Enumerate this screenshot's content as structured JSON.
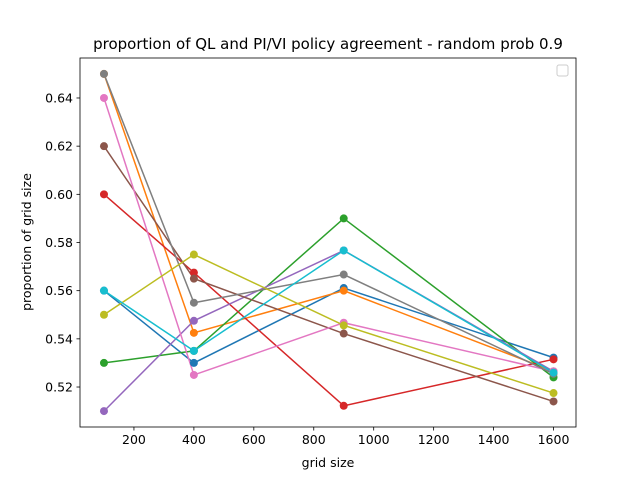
{
  "chart_data": {
    "type": "line",
    "title": "proportion of QL and PI/VI policy agreement - random prob 0.9",
    "xlabel": "grid size",
    "ylabel": "proportion of grid size",
    "xlim": [
      20,
      1675
    ],
    "ylim": [
      0.5034,
      0.6566
    ],
    "xticks": [
      200,
      400,
      600,
      800,
      1000,
      1200,
      1400,
      1600
    ],
    "yticks": [
      0.52,
      0.54,
      0.56,
      0.58,
      0.6,
      0.62,
      0.64
    ],
    "x": [
      100,
      400,
      900,
      1600
    ],
    "grid": false,
    "legend": {
      "placement": "upper right",
      "entries": []
    },
    "series": [
      {
        "color": "#1f77b4",
        "values": [
          0.56,
          0.53,
          0.5611,
          0.5322
        ]
      },
      {
        "color": "#ff7f0e",
        "values": [
          0.65,
          0.5425,
          0.56,
          0.5265
        ]
      },
      {
        "color": "#2ca02c",
        "values": [
          0.53,
          0.535,
          0.59,
          0.524
        ]
      },
      {
        "color": "#d62728",
        "values": [
          0.6,
          0.5675,
          0.5122,
          0.5315
        ]
      },
      {
        "color": "#9467bd",
        "values": [
          0.51,
          0.5475,
          0.5767,
          0.5265
        ]
      },
      {
        "color": "#8c564b",
        "values": [
          0.62,
          0.565,
          0.5422,
          0.514
        ]
      },
      {
        "color": "#e377c2",
        "values": [
          0.64,
          0.525,
          0.5467,
          0.5265
        ]
      },
      {
        "color": "#7f7f7f",
        "values": [
          0.65,
          0.555,
          0.5667,
          0.5255
        ]
      },
      {
        "color": "#bcbd22",
        "values": [
          0.55,
          0.575,
          0.5456,
          0.5175
        ]
      },
      {
        "color": "#17becf",
        "values": [
          0.56,
          0.535,
          0.5767,
          0.526
        ]
      }
    ]
  }
}
